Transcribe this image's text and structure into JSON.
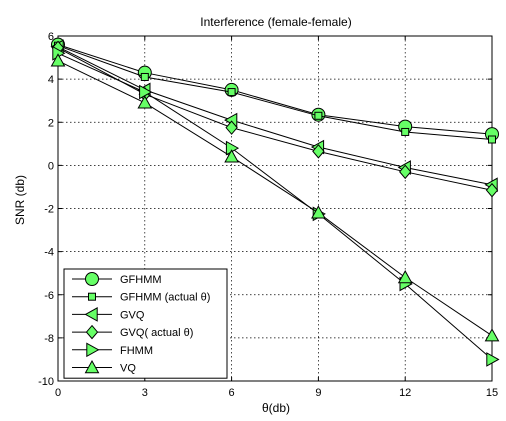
{
  "chart_data": {
    "type": "line",
    "title": "Interference (female-female)",
    "xlabel": "θ(db)",
    "ylabel": "SNR (db)",
    "x": [
      0,
      3,
      6,
      9,
      12,
      15
    ],
    "xticks": [
      0,
      3,
      6,
      9,
      12,
      15
    ],
    "yticks": [
      -10,
      -8,
      -6,
      -4,
      -2,
      0,
      2,
      4,
      6
    ],
    "xlim": [
      0,
      15
    ],
    "ylim": [
      -10,
      6
    ],
    "grid": true,
    "legend_position": "bottom-left",
    "line_color": "#000000",
    "marker_fill": "#66ff66",
    "series": [
      {
        "name": "GFHMM",
        "marker": "circle",
        "values": [
          5.6,
          4.3,
          3.5,
          2.35,
          1.8,
          1.45
        ]
      },
      {
        "name": "GFHMM (actual θ)",
        "marker": "square",
        "values": [
          5.55,
          4.1,
          3.4,
          2.3,
          1.55,
          1.2
        ]
      },
      {
        "name": "GVQ",
        "marker": "triangle-left",
        "values": [
          5.5,
          3.5,
          2.1,
          0.85,
          -0.1,
          -0.9
        ]
      },
      {
        "name": "GVQ( actual θ)",
        "marker": "diamond",
        "values": [
          5.45,
          3.3,
          1.75,
          0.65,
          -0.3,
          -1.15
        ]
      },
      {
        "name": "FHMM",
        "marker": "triangle-right",
        "values": [
          5.2,
          3.4,
          0.8,
          -2.25,
          -5.5,
          -9.0
        ]
      },
      {
        "name": "VQ",
        "marker": "triangle-up",
        "values": [
          4.85,
          2.9,
          0.4,
          -2.2,
          -5.2,
          -7.9
        ]
      }
    ]
  }
}
